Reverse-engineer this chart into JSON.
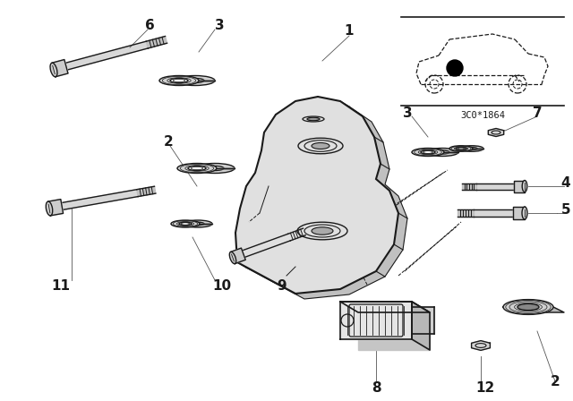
{
  "bg_color": "#ffffff",
  "line_color": "#1a1a1a",
  "diagram_code": "3C0*1864",
  "figsize": [
    6.4,
    4.48
  ],
  "dpi": 100
}
